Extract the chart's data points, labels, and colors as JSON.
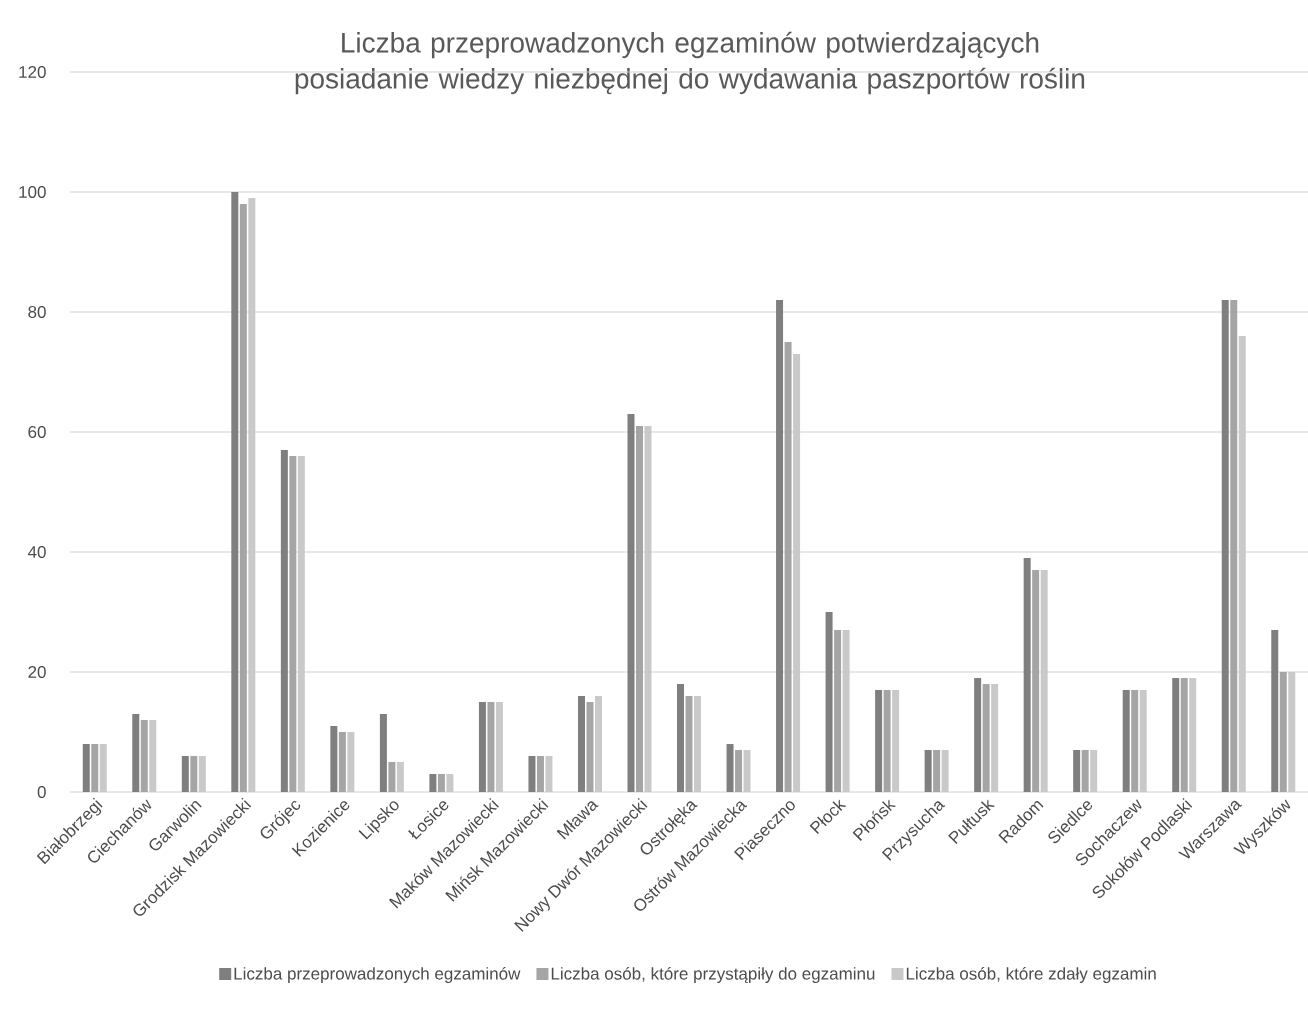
{
  "chart_data": {
    "type": "bar",
    "title": "Liczba przeprowadzonych egzaminów potwierdzających posiadanie wiedzy niezbędnej do wydawania paszportów roślin",
    "categories": [
      "Białobrzegi",
      "Ciechanów",
      "Garwolin",
      "Grodzisk Mazowiecki",
      "Grójec",
      "Kozienice",
      "Lipsko",
      "Łosice",
      "Maków Mazowiecki",
      "Mińsk Mazowiecki",
      "Mława",
      "Nowy Dwór Mazowiecki",
      "Ostrołęka",
      "Ostrów Mazowiecka",
      "Piaseczno",
      "Płock",
      "Płońsk",
      "Przysucha",
      "Pułtusk",
      "Radom",
      "Siedlce",
      "Sochaczew",
      "Sokołów Podlaski",
      "Warszawa",
      "Wyszków"
    ],
    "series": [
      {
        "name": "Liczba przeprowadzonych egzaminów",
        "color": "#7f7f7f",
        "values": [
          8,
          13,
          6,
          100,
          57,
          11,
          13,
          3,
          15,
          6,
          16,
          63,
          18,
          8,
          82,
          30,
          17,
          7,
          19,
          39,
          7,
          17,
          19,
          82,
          27
        ]
      },
      {
        "name": "Liczba osób, które przystąpiły do egzaminu",
        "color": "#a5a5a5",
        "values": [
          8,
          12,
          6,
          98,
          56,
          10,
          5,
          3,
          15,
          6,
          15,
          61,
          16,
          7,
          75,
          27,
          17,
          7,
          18,
          37,
          7,
          17,
          19,
          82,
          20
        ]
      },
      {
        "name": "Liczba osób, które zdały egzamin",
        "color": "#c9c9c9",
        "values": [
          8,
          12,
          6,
          99,
          56,
          10,
          5,
          3,
          15,
          6,
          16,
          61,
          16,
          7,
          73,
          27,
          17,
          7,
          18,
          37,
          7,
          17,
          19,
          76,
          20
        ]
      }
    ],
    "ylim": [
      0,
      120
    ],
    "yticks": [
      0,
      20,
      40,
      60,
      80,
      100,
      120
    ],
    "grid": "y",
    "legend": "bottom"
  }
}
